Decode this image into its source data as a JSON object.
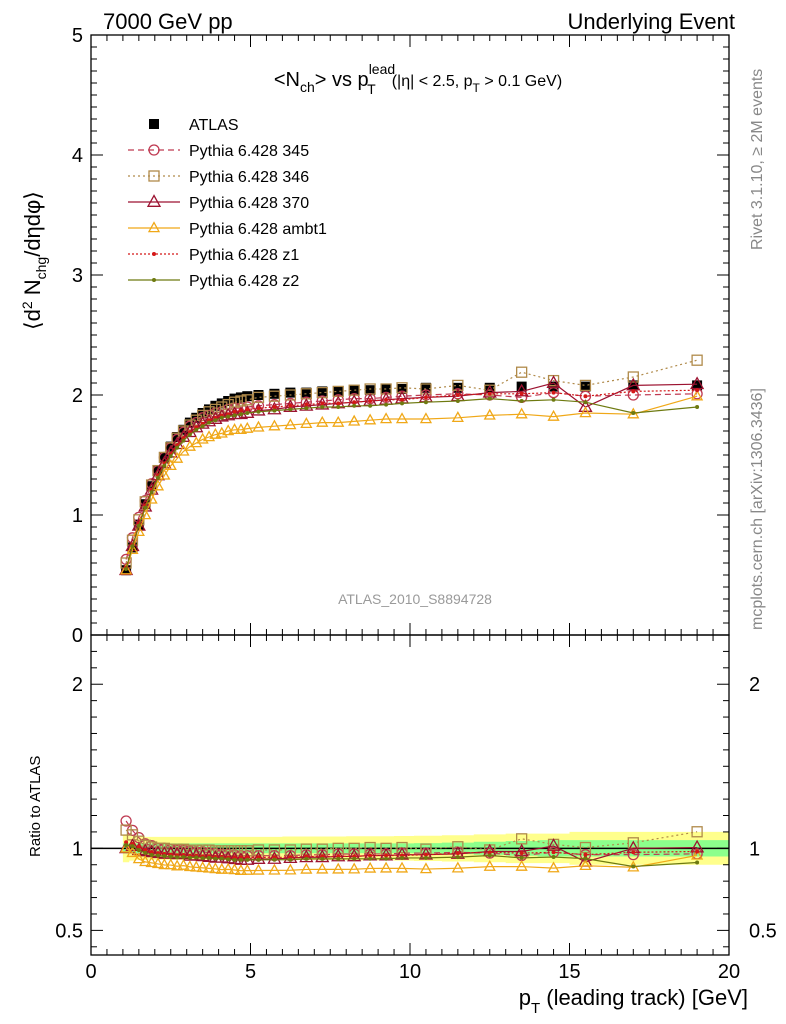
{
  "header": {
    "left": "7000 GeV pp",
    "right": "Underlying Event"
  },
  "side_text": {
    "rivet": "Rivet 3.1.10, ≥ 2M events",
    "mcplots": "mcplots.cern.ch [arXiv:1306.3436]"
  },
  "plot_title": {
    "main": "<N",
    "sub_ch": "ch",
    "mid": "> vs p",
    "sup_lead": "lead",
    "sub_t": "T",
    "cut_1": "(|η| < 2.5, p",
    "cut_sub_t": "T",
    "cut_2": " > 0.1 GeV)"
  },
  "analysis_label": "ATLAS_2010_S8894728",
  "y_axis_label": {
    "p1": "⟨d",
    "p2": "2",
    "p3": " N",
    "p4": "chg",
    "p5": "/dηdφ⟩"
  },
  "ratio_axis_label": "Ratio to ATLAS",
  "x_axis_label": {
    "p1": "p",
    "p2": "T",
    "p3": " (leading track) [GeV]"
  },
  "colors": {
    "atlas": "#000000",
    "p345": "#bf3a52",
    "p346": "#b08a4a",
    "p370": "#9c1230",
    "ambt1": "#f0a818",
    "z1": "#d41818",
    "z2": "#6e7a10",
    "band_outer": "#ffff8c",
    "band_inner": "#8cff8c"
  },
  "legend": [
    {
      "label": "ATLAS"
    },
    {
      "label": "Pythia 6.428 345"
    },
    {
      "label": "Pythia 6.428 346"
    },
    {
      "label": "Pythia 6.428 370"
    },
    {
      "label": "Pythia 6.428 ambt1"
    },
    {
      "label": "Pythia 6.428 z1"
    },
    {
      "label": "Pythia 6.428 z2"
    }
  ],
  "chart_data": {
    "type": "scatter",
    "x_range": [
      0,
      20
    ],
    "main_ylim": [
      0,
      5
    ],
    "ratio_ylim": [
      0.35,
      2.3
    ],
    "main_yticks": [
      0,
      1,
      2,
      3,
      4,
      5
    ],
    "ratio_yticks": [
      0.5,
      1,
      2
    ],
    "xticks": [
      0,
      5,
      10,
      15,
      20
    ],
    "x": [
      1.1,
      1.3,
      1.5,
      1.7,
      1.9,
      2.1,
      2.3,
      2.5,
      2.7,
      2.9,
      3.1,
      3.3,
      3.5,
      3.7,
      3.9,
      4.1,
      4.3,
      4.5,
      4.7,
      4.9,
      5.25,
      5.75,
      6.25,
      6.75,
      7.25,
      7.75,
      8.25,
      8.75,
      9.25,
      9.75,
      10.5,
      11.5,
      12.5,
      13.5,
      14.5,
      15.5,
      17.0,
      19.0
    ],
    "series": [
      {
        "name": "ATLAS",
        "values": [
          0.54,
          0.73,
          0.92,
          1.09,
          1.24,
          1.37,
          1.48,
          1.57,
          1.65,
          1.71,
          1.77,
          1.81,
          1.85,
          1.88,
          1.91,
          1.93,
          1.95,
          1.97,
          1.98,
          1.99,
          2.0,
          2.01,
          2.02,
          2.02,
          2.03,
          2.03,
          2.04,
          2.04,
          2.05,
          2.05,
          2.06,
          2.06,
          2.06,
          2.07,
          2.07,
          2.07,
          2.08,
          2.08
        ]
      },
      {
        "name": "Pythia 6.428 345",
        "values": [
          0.63,
          0.81,
          0.98,
          1.12,
          1.26,
          1.37,
          1.48,
          1.56,
          1.63,
          1.69,
          1.74,
          1.77,
          1.81,
          1.83,
          1.85,
          1.86,
          1.88,
          1.89,
          1.89,
          1.9,
          1.91,
          1.92,
          1.93,
          1.94,
          1.95,
          1.96,
          1.97,
          1.97,
          1.98,
          1.99,
          2.0,
          2.01,
          2.0,
          1.98,
          2.02,
          1.99,
          2.0,
          2.01
        ]
      },
      {
        "name": "Pythia 6.428 346",
        "values": [
          0.6,
          0.79,
          0.96,
          1.11,
          1.25,
          1.37,
          1.48,
          1.56,
          1.64,
          1.7,
          1.75,
          1.79,
          1.83,
          1.86,
          1.88,
          1.9,
          1.92,
          1.94,
          1.95,
          1.96,
          1.98,
          1.99,
          2.0,
          2.01,
          2.02,
          2.03,
          2.04,
          2.05,
          2.05,
          2.06,
          2.05,
          2.08,
          2.04,
          2.19,
          2.12,
          2.08,
          2.15,
          2.29
        ]
      },
      {
        "name": "Pythia 6.428 370",
        "values": [
          0.54,
          0.74,
          0.91,
          1.07,
          1.21,
          1.33,
          1.43,
          1.52,
          1.59,
          1.65,
          1.69,
          1.73,
          1.76,
          1.78,
          1.8,
          1.82,
          1.83,
          1.84,
          1.84,
          1.85,
          1.87,
          1.88,
          1.9,
          1.91,
          1.92,
          1.93,
          1.94,
          1.95,
          1.96,
          1.97,
          1.98,
          1.99,
          2.02,
          2.03,
          2.1,
          1.9,
          2.08,
          2.09
        ]
      },
      {
        "name": "Pythia 6.428 ambt1",
        "values": [
          0.54,
          0.71,
          0.86,
          1.0,
          1.13,
          1.24,
          1.33,
          1.41,
          1.47,
          1.53,
          1.57,
          1.6,
          1.63,
          1.65,
          1.67,
          1.68,
          1.7,
          1.71,
          1.71,
          1.72,
          1.73,
          1.74,
          1.75,
          1.76,
          1.77,
          1.77,
          1.78,
          1.79,
          1.8,
          1.8,
          1.8,
          1.81,
          1.83,
          1.84,
          1.82,
          1.85,
          1.84,
          1.99
        ]
      },
      {
        "name": "Pythia 6.428 z1",
        "values": [
          0.56,
          0.75,
          0.93,
          1.08,
          1.21,
          1.33,
          1.43,
          1.51,
          1.58,
          1.64,
          1.69,
          1.73,
          1.76,
          1.79,
          1.81,
          1.83,
          1.84,
          1.86,
          1.87,
          1.88,
          1.89,
          1.9,
          1.91,
          1.92,
          1.93,
          1.93,
          1.94,
          1.95,
          1.96,
          1.96,
          1.98,
          2.0,
          2.01,
          2.01,
          2.02,
          1.99,
          2.03,
          2.04
        ]
      },
      {
        "name": "Pythia 6.428 z2",
        "values": [
          0.55,
          0.74,
          0.91,
          1.06,
          1.19,
          1.31,
          1.41,
          1.49,
          1.56,
          1.62,
          1.67,
          1.71,
          1.74,
          1.77,
          1.79,
          1.81,
          1.82,
          1.83,
          1.84,
          1.85,
          1.86,
          1.87,
          1.88,
          1.89,
          1.9,
          1.9,
          1.91,
          1.91,
          1.92,
          1.93,
          1.94,
          1.95,
          1.97,
          1.95,
          1.96,
          1.94,
          1.85,
          1.9
        ]
      }
    ],
    "band_rel_outer": [
      0.085,
      0.075,
      0.07,
      0.07,
      0.07,
      0.07,
      0.07,
      0.07,
      0.07,
      0.07,
      0.07,
      0.07,
      0.07,
      0.07,
      0.07,
      0.07,
      0.07,
      0.07,
      0.07,
      0.07,
      0.07,
      0.07,
      0.072,
      0.072,
      0.072,
      0.072,
      0.074,
      0.074,
      0.074,
      0.075,
      0.077,
      0.08,
      0.085,
      0.09,
      0.09,
      0.1,
      0.1,
      0.1
    ],
    "band_rel_inner": [
      0.03,
      0.03,
      0.03,
      0.03,
      0.03,
      0.03,
      0.03,
      0.03,
      0.03,
      0.03,
      0.03,
      0.03,
      0.03,
      0.03,
      0.03,
      0.03,
      0.03,
      0.03,
      0.03,
      0.03,
      0.03,
      0.03,
      0.03,
      0.03,
      0.03,
      0.03,
      0.03,
      0.03,
      0.03,
      0.03,
      0.032,
      0.035,
      0.04,
      0.045,
      0.05,
      0.05,
      0.05,
      0.05
    ]
  }
}
